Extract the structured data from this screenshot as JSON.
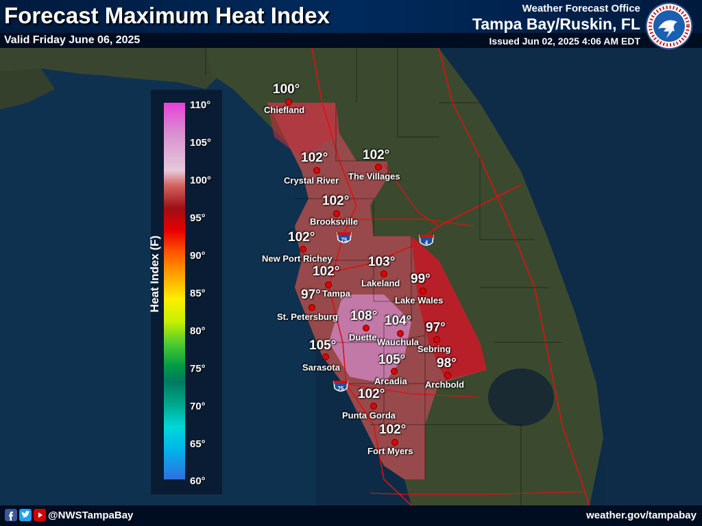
{
  "header": {
    "title": "Forecast Maximum Heat Index",
    "valid": "Valid Friday June 06, 2025",
    "office_label": "Weather Forecast Office",
    "office_name": "Tampa Bay/Ruskin, FL",
    "issued": "Issued Jun 02, 2025 4:06 AM EDT",
    "logo_icon": "nws-logo-icon"
  },
  "legend": {
    "title": "Heat Index (F)",
    "ticks": [
      "110°",
      "105°",
      "100°",
      "95°",
      "90°",
      "85°",
      "80°",
      "75°",
      "70°",
      "65°",
      "60°"
    ]
  },
  "cities": [
    {
      "name": "Chiefland",
      "value": "100°"
    },
    {
      "name": "Crystal River",
      "value": "102°"
    },
    {
      "name": "The Villages",
      "value": "102°"
    },
    {
      "name": "Brooksville",
      "value": "102°"
    },
    {
      "name": "New Port Richey",
      "value": "102°"
    },
    {
      "name": "Lakeland",
      "value": "103°"
    },
    {
      "name": "Tampa",
      "value": "102°"
    },
    {
      "name": "Lake Wales",
      "value": "99°"
    },
    {
      "name": "St. Petersburg",
      "value": "97°"
    },
    {
      "name": "Duette",
      "value": "108°"
    },
    {
      "name": "Wauchula",
      "value": "104°"
    },
    {
      "name": "Sebring",
      "value": "97°"
    },
    {
      "name": "Sarasota",
      "value": "105°"
    },
    {
      "name": "Arcadia",
      "value": "105°"
    },
    {
      "name": "Archbold",
      "value": "98°"
    },
    {
      "name": "Punta Gorda",
      "value": "102°"
    },
    {
      "name": "Fort Myers",
      "value": "102°"
    }
  ],
  "highways": {
    "i75": "75",
    "i4": "4"
  },
  "footer": {
    "handle": "@NWSTampaBay",
    "url": "weather.gov/tampabay",
    "icons": [
      "facebook-icon",
      "twitter-icon",
      "youtube-icon"
    ]
  },
  "colors": {
    "accent": "#002a5c",
    "marker": "#e00000",
    "land": "#3b4a2f",
    "water": "#0b2a45"
  }
}
